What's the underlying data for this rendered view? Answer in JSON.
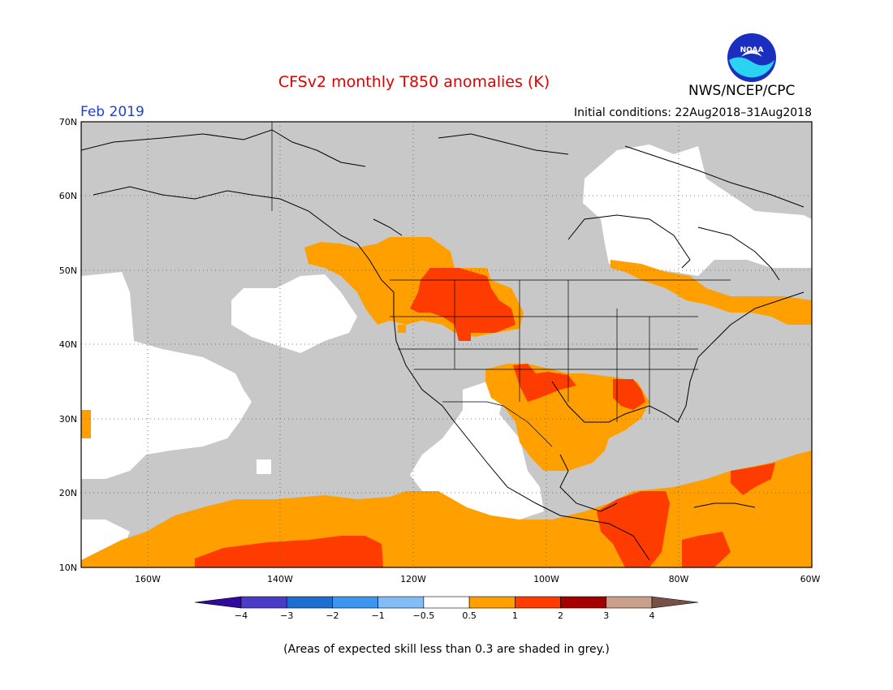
{
  "title": "CFSv2 monthly T850 anomalies (K)",
  "period": "Feb 2019",
  "initial_conditions": "Initial conditions: 22Aug2018–31Aug2018",
  "agency": "NWS/NCEP/CPC",
  "logo_text": "NOAA",
  "footnote": "(Areas of expected skill less than 0.3 are shaded in grey.)",
  "map": {
    "lon_range": [
      -170,
      -60
    ],
    "lat_range": [
      10,
      70
    ],
    "lat_ticks": [
      {
        "value": 70,
        "label": "70N"
      },
      {
        "value": 60,
        "label": "60N"
      },
      {
        "value": 50,
        "label": "50N"
      },
      {
        "value": 40,
        "label": "40N"
      },
      {
        "value": 30,
        "label": "30N"
      },
      {
        "value": 20,
        "label": "20N"
      },
      {
        "value": 10,
        "label": "10N"
      }
    ],
    "lon_ticks": [
      {
        "value": -160,
        "label": "160W"
      },
      {
        "value": -140,
        "label": "140W"
      },
      {
        "value": -120,
        "label": "120W"
      },
      {
        "value": -100,
        "label": "100W"
      },
      {
        "value": -80,
        "label": "80W"
      },
      {
        "value": -60,
        "label": "60W"
      }
    ],
    "colors": {
      "low_skill_grey": "#c8c8c8",
      "near_zero": "#ffffff",
      "warm_0_5_to_1": "#ffa000",
      "warm_1_to_2": "#ff3c00",
      "warm_2_to_3": "#a50000"
    }
  },
  "colorbar": {
    "bins": [
      {
        "color": "#2e0a9e"
      },
      {
        "color": "#4b3cc8"
      },
      {
        "color": "#1e6ed2"
      },
      {
        "color": "#3c96f0"
      },
      {
        "color": "#82bef5"
      },
      {
        "color": "#ffffff"
      },
      {
        "color": "#ffa000"
      },
      {
        "color": "#ff3c00"
      },
      {
        "color": "#a50000"
      },
      {
        "color": "#c8a08c"
      },
      {
        "color": "#785046"
      }
    ],
    "tick_labels": [
      "−4",
      "−3",
      "−2",
      "−1",
      "−0.5",
      "0.5",
      "1",
      "2",
      "3",
      "4"
    ]
  }
}
